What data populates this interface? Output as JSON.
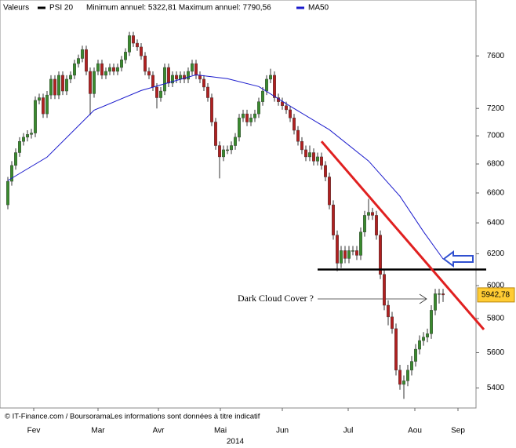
{
  "chart_data": {
    "type": "candlestick",
    "legend_label": "Valeurs",
    "legend_series": "PSI 20",
    "legend_range": "Minimum annuel: 5322,81 Maximum annuel: 7790,56",
    "legend_color": "#000000",
    "log_scale": true,
    "up_color": "#3a8a2e",
    "down_color": "#b02020",
    "candles": [
      [
        6520,
        6710,
        6490,
        6680
      ],
      [
        6680,
        6820,
        6650,
        6790
      ],
      [
        6790,
        6910,
        6760,
        6880
      ],
      [
        6880,
        6990,
        6850,
        6960
      ],
      [
        6960,
        7020,
        6930,
        6990
      ],
      [
        6990,
        7040,
        6960,
        7010
      ],
      [
        7010,
        7050,
        6980,
        7020
      ],
      [
        7020,
        7290,
        6990,
        7260
      ],
      [
        7260,
        7310,
        7230,
        7280
      ],
      [
        7280,
        7310,
        7130,
        7160
      ],
      [
        7160,
        7330,
        7130,
        7300
      ],
      [
        7300,
        7450,
        7270,
        7420
      ],
      [
        7420,
        7450,
        7270,
        7300
      ],
      [
        7300,
        7480,
        7270,
        7450
      ],
      [
        7450,
        7480,
        7300,
        7330
      ],
      [
        7330,
        7450,
        7300,
        7420
      ],
      [
        7420,
        7480,
        7390,
        7450
      ],
      [
        7450,
        7570,
        7420,
        7540
      ],
      [
        7540,
        7610,
        7510,
        7580
      ],
      [
        7580,
        7680,
        7550,
        7650
      ],
      [
        7650,
        7680,
        7450,
        7480
      ],
      [
        7480,
        7510,
        7150,
        7310
      ],
      [
        7310,
        7510,
        7280,
        7480
      ],
      [
        7480,
        7570,
        7450,
        7540
      ],
      [
        7540,
        7570,
        7420,
        7450
      ],
      [
        7450,
        7510,
        7420,
        7480
      ],
      [
        7480,
        7540,
        7450,
        7510
      ],
      [
        7510,
        7540,
        7450,
        7480
      ],
      [
        7480,
        7540,
        7450,
        7510
      ],
      [
        7510,
        7600,
        7480,
        7570
      ],
      [
        7570,
        7660,
        7540,
        7630
      ],
      [
        7630,
        7790,
        7600,
        7760
      ],
      [
        7760,
        7790,
        7670,
        7700
      ],
      [
        7700,
        7730,
        7640,
        7670
      ],
      [
        7670,
        7700,
        7570,
        7600
      ],
      [
        7600,
        7630,
        7450,
        7480
      ],
      [
        7480,
        7510,
        7420,
        7450
      ],
      [
        7450,
        7480,
        7330,
        7360
      ],
      [
        7360,
        7390,
        7200,
        7280
      ],
      [
        7280,
        7360,
        7250,
        7330
      ],
      [
        7330,
        7540,
        7300,
        7510
      ],
      [
        7510,
        7540,
        7360,
        7390
      ],
      [
        7390,
        7480,
        7360,
        7450
      ],
      [
        7450,
        7480,
        7390,
        7420
      ],
      [
        7420,
        7480,
        7390,
        7450
      ],
      [
        7450,
        7480,
        7390,
        7420
      ],
      [
        7420,
        7510,
        7390,
        7480
      ],
      [
        7480,
        7570,
        7450,
        7540
      ],
      [
        7540,
        7570,
        7420,
        7450
      ],
      [
        7450,
        7480,
        7390,
        7420
      ],
      [
        7420,
        7450,
        7330,
        7360
      ],
      [
        7360,
        7390,
        7250,
        7280
      ],
      [
        7280,
        7310,
        7070,
        7100
      ],
      [
        7100,
        7130,
        6900,
        6930
      ],
      [
        6930,
        6960,
        6700,
        6850
      ],
      [
        6850,
        6930,
        6820,
        6900
      ],
      [
        6900,
        6930,
        6870,
        6900
      ],
      [
        6900,
        6960,
        6870,
        6930
      ],
      [
        6930,
        7020,
        6900,
        6990
      ],
      [
        6990,
        7160,
        6960,
        7130
      ],
      [
        7130,
        7190,
        7100,
        7160
      ],
      [
        7160,
        7190,
        7070,
        7100
      ],
      [
        7100,
        7160,
        7070,
        7130
      ],
      [
        7130,
        7190,
        7100,
        7160
      ],
      [
        7160,
        7280,
        7130,
        7250
      ],
      [
        7250,
        7360,
        7220,
        7330
      ],
      [
        7330,
        7450,
        7300,
        7420
      ],
      [
        7420,
        7500,
        7390,
        7450
      ],
      [
        7450,
        7480,
        7250,
        7280
      ],
      [
        7280,
        7310,
        7220,
        7250
      ],
      [
        7250,
        7280,
        7190,
        7220
      ],
      [
        7220,
        7250,
        7160,
        7190
      ],
      [
        7190,
        7220,
        7100,
        7130
      ],
      [
        7130,
        7160,
        7010,
        7040
      ],
      [
        7040,
        7070,
        6930,
        6960
      ],
      [
        6960,
        6990,
        6870,
        6900
      ],
      [
        6900,
        6930,
        6820,
        6850
      ],
      [
        6850,
        6930,
        6820,
        6880
      ],
      [
        6880,
        6910,
        6790,
        6820
      ],
      [
        6820,
        6880,
        6790,
        6850
      ],
      [
        6850,
        6880,
        6760,
        6790
      ],
      [
        6790,
        6820,
        6680,
        6710
      ],
      [
        6710,
        6740,
        6490,
        6520
      ],
      [
        6520,
        6550,
        6290,
        6320
      ],
      [
        6320,
        6350,
        6090,
        6140
      ],
      [
        6140,
        6250,
        6110,
        6220
      ],
      [
        6220,
        6250,
        6140,
        6170
      ],
      [
        6170,
        6250,
        6140,
        6220
      ],
      [
        6220,
        6250,
        6190,
        6220
      ],
      [
        6220,
        6250,
        6160,
        6190
      ],
      [
        6190,
        6370,
        6160,
        6340
      ],
      [
        6340,
        6480,
        6310,
        6450
      ],
      [
        6450,
        6560,
        6420,
        6470
      ],
      [
        6470,
        6500,
        6420,
        6450
      ],
      [
        6450,
        6480,
        6290,
        6320
      ],
      [
        6320,
        6350,
        6040,
        6070
      ],
      [
        6070,
        6100,
        5850,
        5880
      ],
      [
        5880,
        5910,
        5760,
        5810
      ],
      [
        5810,
        5840,
        5710,
        5740
      ],
      [
        5740,
        5770,
        5470,
        5500
      ],
      [
        5500,
        5530,
        5390,
        5420
      ],
      [
        5420,
        5470,
        5340,
        5440
      ],
      [
        5440,
        5530,
        5410,
        5500
      ],
      [
        5500,
        5580,
        5470,
        5550
      ],
      [
        5550,
        5650,
        5520,
        5620
      ],
      [
        5620,
        5700,
        5590,
        5670
      ],
      [
        5670,
        5720,
        5640,
        5690
      ],
      [
        5690,
        5740,
        5660,
        5710
      ],
      [
        5710,
        5880,
        5680,
        5850
      ],
      [
        5850,
        5980,
        5820,
        5950
      ],
      [
        5950,
        5980,
        5890,
        5950
      ],
      [
        5950,
        5980,
        5900,
        5942.78
      ]
    ],
    "ma50": {
      "name": "MA50",
      "color": "#1a1acc",
      "x": [
        0,
        10,
        22,
        34,
        48,
        56,
        64,
        72,
        82,
        92,
        100,
        106,
        111
      ],
      "values": [
        6685,
        6848,
        7187,
        7334,
        7453,
        7424,
        7364,
        7217,
        7044,
        6821,
        6578,
        6343,
        6167
      ]
    },
    "last_price": {
      "value": 5942.78,
      "label": "5942,78"
    },
    "trendline": {
      "color": "#e02020",
      "x": [
        80,
        121.4
      ],
      "values": [
        6960,
        5735
      ]
    },
    "support": {
      "color": "#000000",
      "x": [
        79,
        122
      ],
      "values": [
        6100,
        6100
      ]
    },
    "annotation": "Dark Cloud Cover ?",
    "footer": "© IT-Finance.com / BoursoramaLes informations sont données à titre indicatif",
    "x_title": "2014",
    "xlim": [
      -2,
      119.4
    ],
    "xticks": [
      {
        "value": 6.6,
        "label": "Fev"
      },
      {
        "value": 23,
        "label": "Mar"
      },
      {
        "value": 38.4,
        "label": "Avr"
      },
      {
        "value": 54.2,
        "label": "Mai"
      },
      {
        "value": 70,
        "label": "Jun"
      },
      {
        "value": 86.8,
        "label": "Jul"
      },
      {
        "value": 103.8,
        "label": "Aou"
      },
      {
        "value": 114.8,
        "label": "Sep"
      }
    ],
    "ylim": [
      5290,
      8050
    ],
    "yticks": [
      5400,
      5600,
      5800,
      6000,
      6200,
      6400,
      6600,
      6800,
      7000,
      7200,
      7600
    ]
  }
}
